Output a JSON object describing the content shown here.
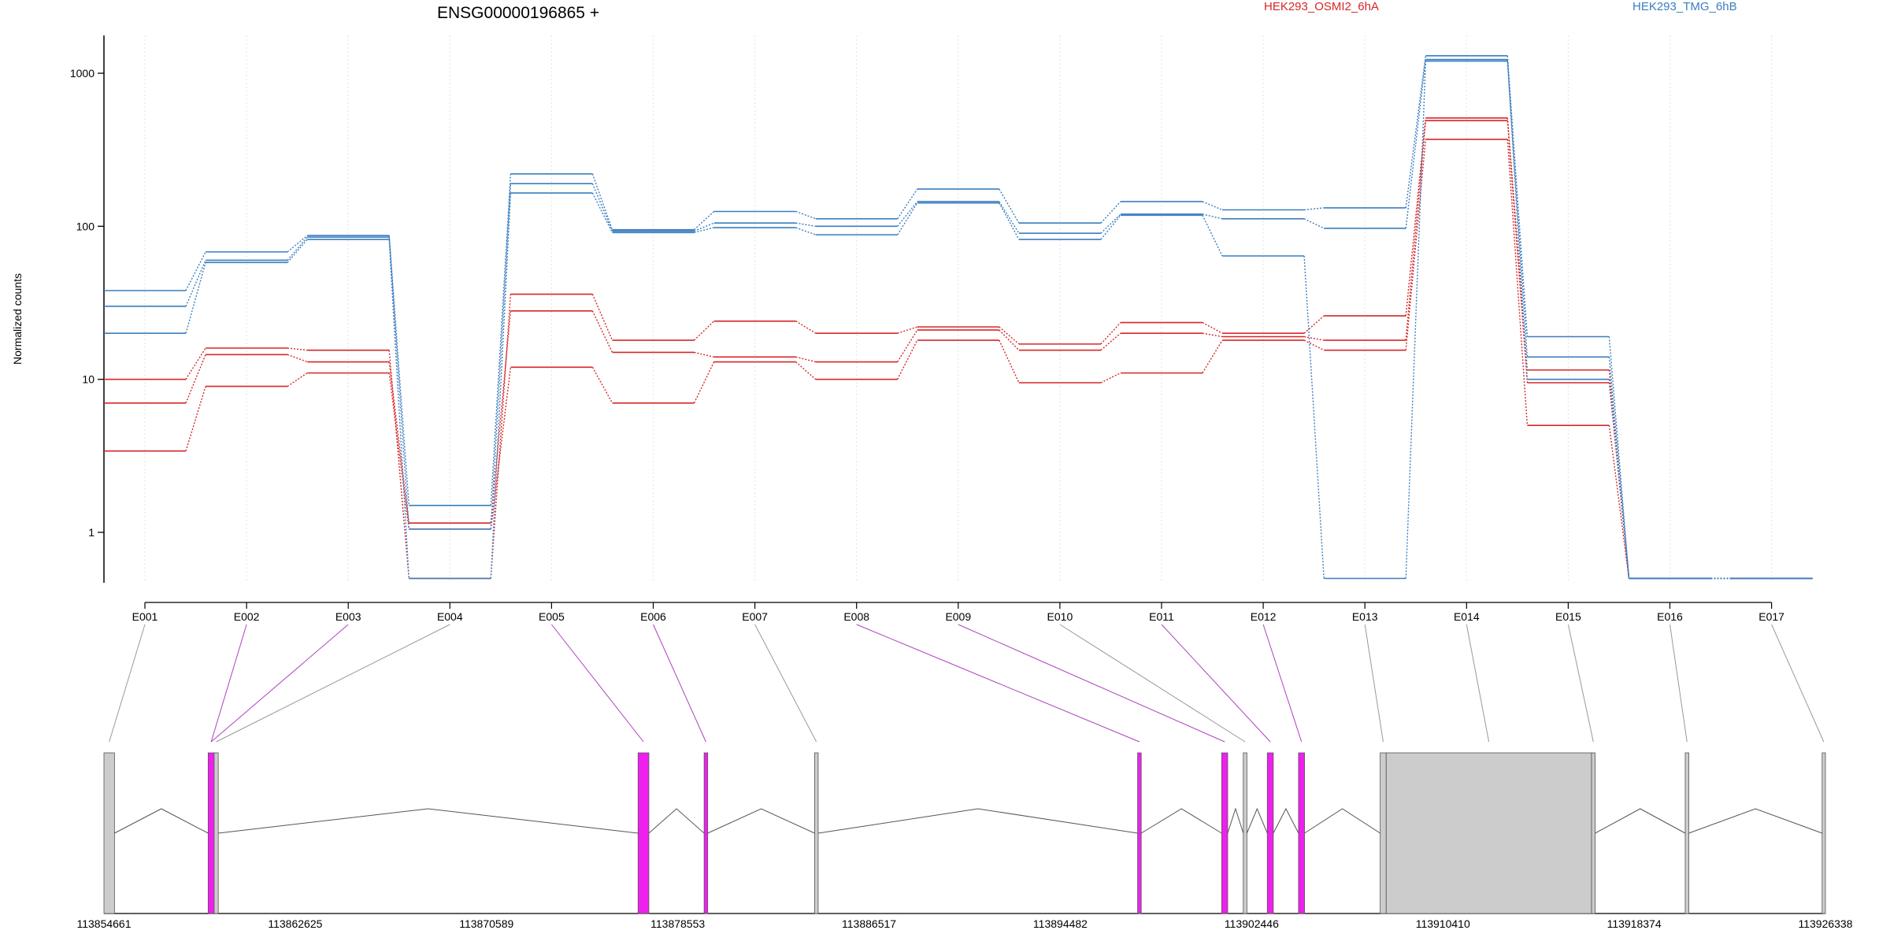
{
  "chart_data": {
    "type": "line",
    "title": "ENSG00000196865 +",
    "ylabel": "Normalized counts",
    "xlabel": "",
    "yscale": "log",
    "ylim": [
      0.5,
      1700
    ],
    "yticks": [
      1,
      10,
      100,
      1000
    ],
    "ytick_labels": [
      "1",
      "10",
      "100",
      "1000"
    ],
    "grid": "vertical dotted",
    "legend_placement": "top",
    "colors": {
      "HEK293_OSMI2_6hA": "#d62728",
      "HEK293_TMG_6hB": "#3a7ebf",
      "coding": "#ee20ee",
      "noncoding": "#cccccc"
    },
    "categories": [
      "E001",
      "E002",
      "E003",
      "E004",
      "E005",
      "E006",
      "E007",
      "E008",
      "E009",
      "E010",
      "E011",
      "E012",
      "E013",
      "E014",
      "E015",
      "E016",
      "E017"
    ],
    "legend": [
      {
        "name": "HEK293_OSMI2_6hA",
        "color": "#d62728"
      },
      {
        "name": "HEK293_TMG_6hB",
        "color": "#3a7ebf"
      }
    ],
    "series": [
      {
        "group": "HEK293_OSMI2_6hA",
        "color": "#d62728",
        "values": [
          10,
          16,
          15.5,
          0.5,
          36,
          18,
          24,
          20,
          22,
          17,
          23.5,
          20,
          26,
          510,
          11.5,
          0.5,
          0.5
        ]
      },
      {
        "group": "HEK293_OSMI2_6hA",
        "color": "#d62728",
        "values": [
          7,
          14.5,
          13,
          1.15,
          28,
          15,
          14,
          13,
          21,
          15.5,
          20,
          19,
          18,
          490,
          9.5,
          0.5,
          0.5
        ]
      },
      {
        "group": "HEK293_OSMI2_6hA",
        "color": "#d62728",
        "values": [
          3.4,
          9,
          11,
          1.05,
          12,
          7,
          13,
          10,
          18,
          9.5,
          11,
          18,
          15.5,
          370,
          5,
          0.5,
          0.5
        ]
      },
      {
        "group": "HEK293_TMG_6hB",
        "color": "#3a7ebf",
        "values": [
          38,
          68,
          87,
          1.5,
          220,
          95,
          125,
          112,
          175,
          105,
          145,
          128,
          132,
          1300,
          19,
          0.5,
          0.5
        ]
      },
      {
        "group": "HEK293_TMG_6hB",
        "color": "#3a7ebf",
        "values": [
          30,
          60,
          85,
          1.05,
          190,
          93,
          105,
          100,
          145,
          90,
          120,
          112,
          97,
          1230,
          14,
          0.5,
          0.5
        ]
      },
      {
        "group": "HEK293_TMG_6hB",
        "color": "#3a7ebf",
        "values": [
          20,
          58,
          82,
          0.5,
          165,
          91,
          98,
          88,
          142,
          82,
          118,
          64,
          0.5,
          1200,
          10,
          0.5,
          0.5
        ]
      }
    ],
    "gene_model": {
      "genomic_ticks": [
        "113854661",
        "113862625",
        "113870589",
        "113878553",
        "113886517",
        "113894482",
        "113902446",
        "113910410",
        "113918374",
        "113926338"
      ],
      "exon_bins": [
        {
          "id": "E001",
          "start": 113854661,
          "end": 113855100,
          "coding": false
        },
        {
          "id": "E002",
          "start": 113859000,
          "end": 113859250,
          "coding": true
        },
        {
          "id": "E003",
          "start": 113859000,
          "end": 113859250,
          "coding": true
        },
        {
          "id": "E004",
          "start": 113859250,
          "end": 113859420,
          "coding": false
        },
        {
          "id": "E005",
          "start": 113876900,
          "end": 113877350,
          "coding": true
        },
        {
          "id": "E006",
          "start": 113879650,
          "end": 113879800,
          "coding": true
        },
        {
          "id": "E007",
          "start": 113884250,
          "end": 113884400,
          "coding": false
        },
        {
          "id": "E008",
          "start": 113897700,
          "end": 113897850,
          "coding": true
        },
        {
          "id": "E009",
          "start": 113901200,
          "end": 113901450,
          "coding": true
        },
        {
          "id": "E010",
          "start": 113902100,
          "end": 113902250,
          "coding": false
        },
        {
          "id": "E011",
          "start": 113903100,
          "end": 113903350,
          "coding": true
        },
        {
          "id": "E012",
          "start": 113904400,
          "end": 113904650,
          "coding": true
        },
        {
          "id": "E013",
          "start": 113907800,
          "end": 113908050,
          "coding": false
        },
        {
          "id": "E014",
          "start": 113908050,
          "end": 113916600,
          "coding": false
        },
        {
          "id": "E015",
          "start": 113916600,
          "end": 113916750,
          "coding": false
        },
        {
          "id": "E016",
          "start": 113920500,
          "end": 113920650,
          "coding": false
        },
        {
          "id": "E017",
          "start": 113926200,
          "end": 113926338,
          "coding": false
        }
      ],
      "exon_blocks": [
        {
          "start": 113854661,
          "end": 113855100,
          "coding": false
        },
        {
          "start": 113859000,
          "end": 113859250,
          "coding": true
        },
        {
          "start": 113859250,
          "end": 113859420,
          "coding": false
        },
        {
          "start": 113876900,
          "end": 113877350,
          "coding": true
        },
        {
          "start": 113879650,
          "end": 113879800,
          "coding": true
        },
        {
          "start": 113884250,
          "end": 113884400,
          "coding": false
        },
        {
          "start": 113897700,
          "end": 113897850,
          "coding": true
        },
        {
          "start": 113901200,
          "end": 113901450,
          "coding": true
        },
        {
          "start": 113902100,
          "end": 113902250,
          "coding": false
        },
        {
          "start": 113903100,
          "end": 113903350,
          "coding": true
        },
        {
          "start": 113904400,
          "end": 113904650,
          "coding": true
        },
        {
          "start": 113907800,
          "end": 113908050,
          "coding": false
        },
        {
          "start": 113908050,
          "end": 113916600,
          "coding": false
        },
        {
          "start": 113916600,
          "end": 113916750,
          "coding": false
        },
        {
          "start": 113920500,
          "end": 113920650,
          "coding": false
        },
        {
          "start": 113926200,
          "end": 113926338,
          "coding": false
        }
      ]
    }
  }
}
